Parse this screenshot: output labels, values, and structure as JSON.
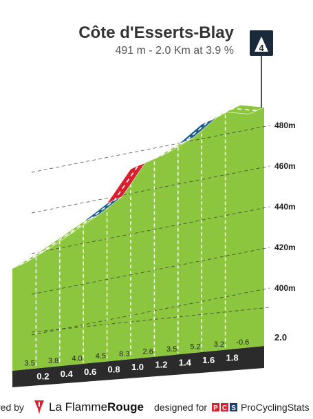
{
  "header": {
    "title": "Côte d'Esserts-Blay",
    "subtitle": "491 m - 2.0 Km at 3.9 %",
    "category": "4"
  },
  "chart_data": {
    "type": "area",
    "title": "Côte d'Esserts-Blay",
    "subtitle": "491 m - 2.0 Km at 3.9 %",
    "x_unit": "km",
    "y_unit": "m",
    "ylim": [
      380,
      495
    ],
    "y_ticks": [
      400,
      420,
      440,
      460,
      480
    ],
    "y_tick_labels": [
      "400m",
      "420m",
      "440m",
      "460m",
      "480m"
    ],
    "km_markers": [
      {
        "x": 0.2,
        "label": "0.2"
      },
      {
        "x": 0.4,
        "label": "0.4"
      },
      {
        "x": 0.6,
        "label": "0.6"
      },
      {
        "x": 0.8,
        "label": "0.8"
      },
      {
        "x": 1.0,
        "label": "1.0"
      },
      {
        "x": 1.2,
        "label": "1.2"
      },
      {
        "x": 1.4,
        "label": "1.4"
      },
      {
        "x": 1.6,
        "label": "1.6"
      },
      {
        "x": 1.8,
        "label": "1.8"
      }
    ],
    "final_distance_label": "2.0",
    "profile": {
      "x": [
        0,
        0.2,
        0.4,
        0.6,
        0.8,
        1.0,
        1.2,
        1.4,
        1.6,
        1.8,
        2.0
      ],
      "y": [
        413,
        420,
        428,
        436,
        445,
        462,
        467,
        474,
        484,
        490,
        489
      ]
    },
    "segments": [
      {
        "gradient": 3.5,
        "label": "3.5",
        "color": "#8cc63f"
      },
      {
        "gradient": 3.8,
        "label": "3.8",
        "color": "#8cc63f"
      },
      {
        "gradient": 4.0,
        "label": "4.0",
        "color": "#8cc63f"
      },
      {
        "gradient": 4.5,
        "label": "4.5",
        "color": "#1f5c8f"
      },
      {
        "gradient": 8.3,
        "label": "8.3",
        "color": "#d9202f"
      },
      {
        "gradient": 2.6,
        "label": "2.6",
        "color": "#8cc63f"
      },
      {
        "gradient": 3.5,
        "label": "3.5",
        "color": "#8cc63f"
      },
      {
        "gradient": 5.2,
        "label": "5.2",
        "color": "#1f5c8f"
      },
      {
        "gradient": 3.2,
        "label": "3.2",
        "color": "#8cc63f"
      },
      {
        "gradient": -0.6,
        "label": "-0.6",
        "color": "#8cc63f"
      }
    ],
    "colors": {
      "profile_fill": "#8cc63f",
      "profile_top": "#a6d55a",
      "side_fill": "#9e9891",
      "base_fill": "#2b2b2b"
    }
  },
  "footer": {
    "powered_by": "red by",
    "brand_regular": "La Flamme",
    "brand_bold": "Rouge",
    "designed_for": "designed for",
    "pcs_badge": "PCS",
    "pcs_name": "ProCyclingStats",
    "icons": [
      "flame-flag-icon",
      "pcs-logo-icon"
    ]
  }
}
